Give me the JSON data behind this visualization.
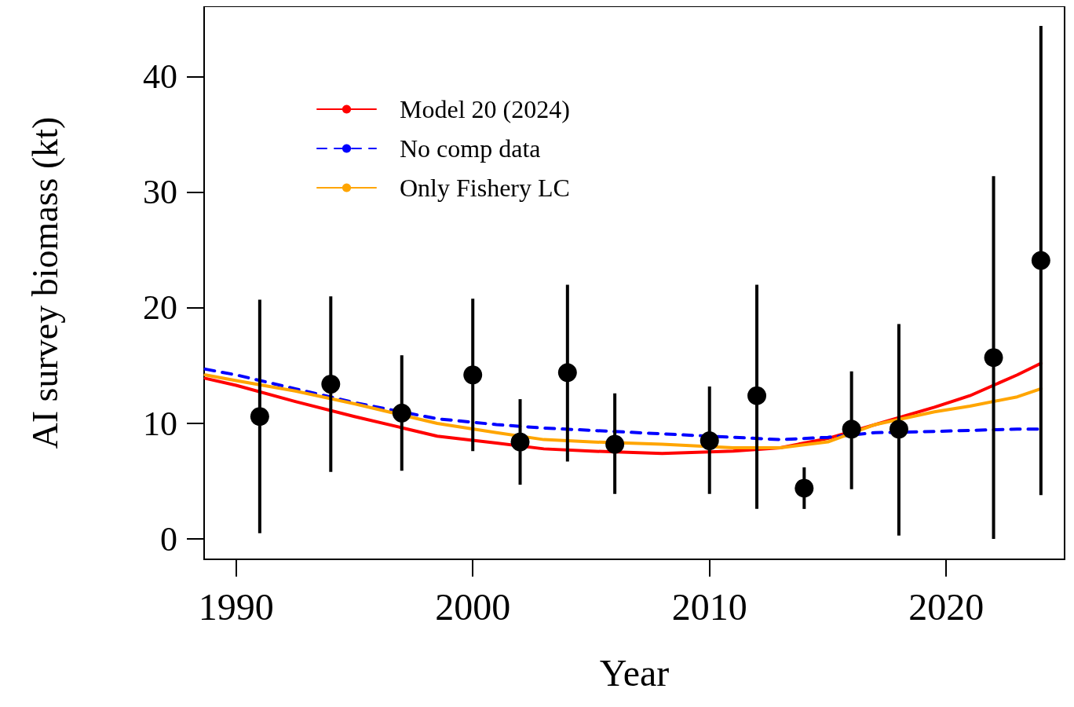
{
  "chart_data": {
    "type": "line",
    "xlabel": "Year",
    "ylabel": "AI survey biomass (kt)",
    "xlim": [
      1988.65,
      2025
    ],
    "xticks": [
      1990,
      2000,
      2010,
      2020
    ],
    "ylim": [
      -1.76,
      46.1
    ],
    "yticks": [
      0,
      10,
      20,
      30,
      40
    ],
    "grid": false,
    "legend": "top left",
    "series": [
      {
        "name": "Model 20 (2024)",
        "color": "#ff0000",
        "line_style": "solid",
        "marker": "none",
        "x": [
          1988.7,
          1990,
          1992.5,
          1995,
          1998.5,
          2001,
          2003,
          2005,
          2008,
          2011,
          2013,
          2015,
          2017,
          2019.5,
          2021,
          2023,
          2024
        ],
        "values": [
          13.9,
          13.3,
          11.9,
          10.6,
          8.9,
          8.3,
          7.8,
          7.6,
          7.4,
          7.6,
          7.9,
          8.7,
          9.9,
          11.4,
          12.4,
          14.2,
          15.2
        ]
      },
      {
        "name": "No comp data",
        "color": "#0000ff",
        "line_style": "dashed",
        "marker": "none",
        "x": [
          1988.7,
          1990,
          1992.5,
          1995,
          1998.5,
          2001,
          2003,
          2005,
          2008,
          2011,
          2013,
          2015,
          2017,
          2019.5,
          2021,
          2023,
          2024
        ],
        "values": [
          14.7,
          14.2,
          13.0,
          11.8,
          10.4,
          9.9,
          9.6,
          9.4,
          9.1,
          8.8,
          8.6,
          8.8,
          9.2,
          9.3,
          9.4,
          9.5,
          9.5
        ]
      },
      {
        "name": "Only Fishery LC",
        "color": "#ffa500",
        "line_style": "solid",
        "marker": "none",
        "x": [
          1988.7,
          1990,
          1992.5,
          1995,
          1998.5,
          2001,
          2003,
          2005,
          2008,
          2011,
          2013,
          2015,
          2017,
          2019.5,
          2021,
          2023,
          2024
        ],
        "values": [
          14.2,
          13.7,
          12.8,
          11.7,
          10.0,
          9.2,
          8.6,
          8.4,
          8.2,
          7.9,
          7.9,
          8.4,
          9.9,
          11.0,
          11.5,
          12.3,
          13.0
        ]
      },
      {
        "type": "scatter",
        "color": "#000000",
        "marker": "circle",
        "x": [
          1991,
          1994,
          1997,
          2000,
          2002,
          2004,
          2006,
          2010,
          2012,
          2014,
          2016,
          2018,
          2022,
          2024
        ],
        "values": [
          10.6,
          13.4,
          10.9,
          14.2,
          8.4,
          14.4,
          8.2,
          8.5,
          12.4,
          4.4,
          9.5,
          9.5,
          15.7,
          24.1
        ],
        "errors": [
          [
            0.5,
            20.7
          ],
          [
            5.8,
            21.0
          ],
          [
            5.9,
            15.9
          ],
          [
            7.6,
            20.8
          ],
          [
            4.7,
            12.1
          ],
          [
            6.7,
            22.0
          ],
          [
            3.9,
            12.6
          ],
          [
            3.9,
            13.2
          ],
          [
            2.6,
            22.0
          ],
          [
            2.6,
            6.2
          ],
          [
            4.3,
            14.5
          ],
          [
            0.3,
            18.6
          ],
          [
            0,
            31.4
          ],
          [
            3.8,
            44.4
          ]
        ]
      }
    ]
  }
}
